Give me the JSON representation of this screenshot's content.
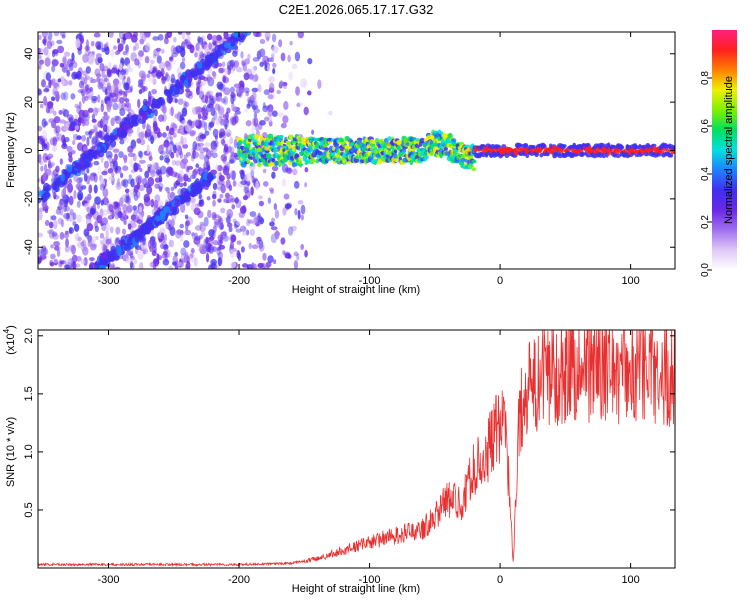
{
  "figure": {
    "title": "C2E1.2026.065.17.17.G32"
  },
  "colors": {
    "snr_line": "#e83030",
    "axis": "#000000",
    "colormap": [
      "#ffffff",
      "#e0c8f8",
      "#a070f0",
      "#6a28e8",
      "#4030f0",
      "#2080ff",
      "#00e0e0",
      "#00e060",
      "#80f000",
      "#f0f000",
      "#ff8000",
      "#ff2020",
      "#ff2080"
    ]
  },
  "chart_data": [
    {
      "type": "heatmap",
      "title": "C2E1.2026.065.17.17.G32",
      "xlabel": "Height of straight line (km)",
      "ylabel": "Frequency (Hz)",
      "xlim": [
        -354,
        134
      ],
      "ylim": [
        -49,
        49
      ],
      "xticks": [
        -300,
        -200,
        -100,
        0,
        100
      ],
      "xtick_labels": [
        "-300",
        "-200",
        "-100",
        "0",
        "100"
      ],
      "yticks": [
        -40,
        -20,
        0,
        20,
        40
      ],
      "ytick_labels": [
        "-40",
        "-20",
        "0",
        "20",
        "40"
      ],
      "features": [
        {
          "name": "noise-region",
          "x_range": [
            -354,
            -150
          ],
          "description_value": "scattered low amplitude"
        },
        {
          "name": "diagonal-trace",
          "x_start": -354,
          "y_start": -20,
          "x_end": -195,
          "y_end": 49
        },
        {
          "name": "secondary-diagonal",
          "x_start": -310,
          "y_start": -49,
          "x_end": -220,
          "y_end": -10
        },
        {
          "name": "signal-band",
          "x_start": -200,
          "x_end": 134,
          "y_center": 0,
          "peak_x_start": -20
        }
      ],
      "colorbar": {
        "label": "Normalized spectral amplitude",
        "range": [
          0,
          1
        ],
        "ticks": [
          0.0,
          0.2,
          0.4,
          0.6,
          0.8
        ],
        "tick_labels": [
          "0.0",
          "0.2",
          "0.4",
          "0.6",
          "0.8"
        ]
      }
    },
    {
      "type": "line",
      "xlabel": "Height of straight line (km)",
      "ylabel": "SNR (10 * v/v)",
      "scale_label": "(x10",
      "scale_exponent": "4",
      "xlim": [
        -354,
        134
      ],
      "ylim": [
        0,
        2.05
      ],
      "xticks": [
        -300,
        -200,
        -100,
        0,
        100
      ],
      "xtick_labels": [
        "-300",
        "-200",
        "-100",
        "0",
        "100"
      ],
      "yticks": [
        0.5,
        1.0,
        1.5,
        2.0
      ],
      "ytick_labels": [
        "0.5",
        "1.0",
        "1.5",
        "2.0"
      ],
      "series": [
        {
          "name": "SNR",
          "x": [
            -354,
            -300,
            -250,
            -200,
            -160,
            -140,
            -120,
            -100,
            -80,
            -60,
            -50,
            -40,
            -30,
            -20,
            -10,
            0,
            5,
            10,
            15,
            20,
            30,
            40,
            50,
            60,
            80,
            100,
            120,
            134
          ],
          "y": [
            0.03,
            0.03,
            0.03,
            0.03,
            0.04,
            0.08,
            0.15,
            0.22,
            0.28,
            0.33,
            0.45,
            0.6,
            0.55,
            0.85,
            1.0,
            1.25,
            1.1,
            0.05,
            1.35,
            1.5,
            1.6,
            1.68,
            1.72,
            1.73,
            1.72,
            1.7,
            1.68,
            1.68
          ]
        }
      ]
    }
  ]
}
